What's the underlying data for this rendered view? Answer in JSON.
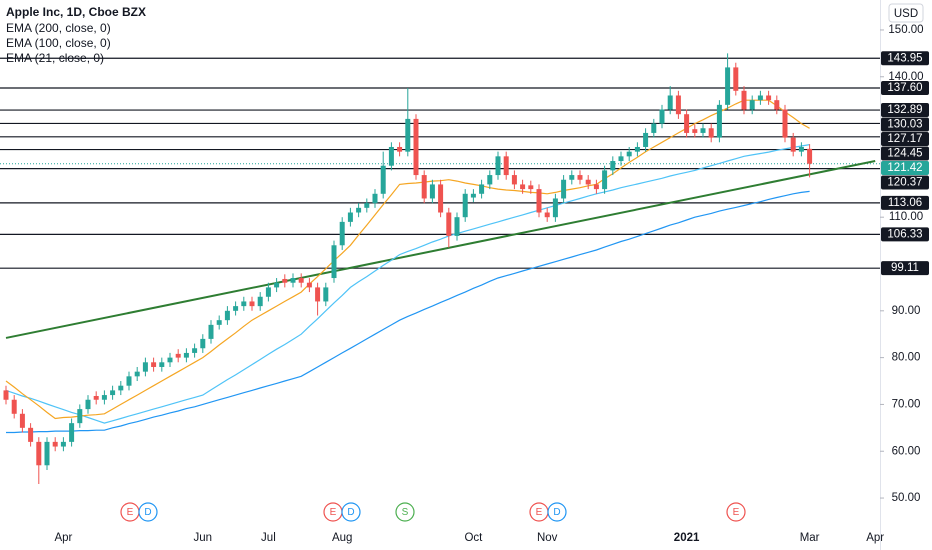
{
  "chart_data": {
    "type": "candlestick",
    "title": "Apple Inc, 1D, Cboe BZX",
    "currency": "USD",
    "categories": [
      null,
      null,
      null,
      null,
      null,
      null,
      null,
      "Apr",
      null,
      null,
      null,
      null,
      null,
      null,
      null,
      null,
      null,
      null,
      null,
      null,
      null,
      null,
      null,
      null,
      "Jun",
      null,
      null,
      null,
      null,
      null,
      null,
      null,
      "Jul",
      null,
      null,
      null,
      null,
      null,
      null,
      null,
      null,
      "Aug",
      null,
      null,
      null,
      null,
      null,
      null,
      null,
      null,
      null,
      null,
      null,
      null,
      null,
      null,
      null,
      "Oct",
      null,
      null,
      null,
      null,
      null,
      null,
      null,
      null,
      "Nov",
      null,
      null,
      null,
      null,
      null,
      null,
      null,
      null,
      null,
      null,
      null,
      null,
      null,
      null,
      null,
      null,
      "2021",
      null,
      null,
      null,
      null,
      null,
      null,
      null,
      null,
      null,
      null,
      null,
      null,
      null,
      null,
      "Mar",
      null,
      null,
      null,
      null,
      null,
      null,
      null,
      "Apr"
    ],
    "open": [
      73,
      71,
      68,
      65,
      62,
      57,
      62,
      61,
      62,
      66,
      69,
      71.8,
      71,
      72,
      73,
      74,
      76,
      77,
      79,
      78,
      79,
      80.8,
      80,
      81,
      82,
      84,
      87,
      88,
      90,
      91,
      92,
      91,
      93,
      95,
      96.8,
      96,
      97,
      96,
      95,
      92,
      97,
      104,
      109,
      111,
      112,
      113,
      115,
      121,
      125,
      124,
      131,
      119,
      114,
      117,
      111,
      106,
      110,
      114.2,
      115,
      117,
      119,
      123,
      119,
      117,
      116.8,
      116,
      111,
      110,
      114,
      118,
      119,
      118,
      117,
      116,
      120,
      122,
      123,
      124,
      125,
      128,
      130,
      133,
      136,
      132,
      128.8,
      128,
      129,
      127,
      134,
      142,
      137,
      133,
      135,
      136,
      135,
      133,
      127,
      124,
      124.6,
      null,
      null,
      null,
      null,
      null,
      null,
      null,
      null
    ],
    "high": [
      74,
      72,
      69,
      66,
      63,
      63,
      63,
      63,
      67,
      70,
      72,
      72.8,
      73,
      74,
      75,
      77,
      78,
      80,
      80,
      80,
      81,
      81.8,
      82,
      83,
      85,
      88,
      89,
      91,
      92,
      93,
      93,
      94,
      96,
      97,
      97.8,
      98,
      98,
      97,
      96,
      96,
      105,
      110,
      112,
      113,
      114,
      116,
      124,
      126,
      126,
      137.6,
      132,
      120,
      118,
      118,
      112,
      111,
      116,
      116,
      118,
      120,
      124,
      124,
      120,
      118,
      117.8,
      117,
      112,
      115,
      119,
      120,
      120,
      119,
      118,
      121,
      123,
      124,
      125,
      126,
      129,
      131,
      134,
      138,
      137,
      133,
      129.8,
      130,
      130,
      135,
      145,
      143,
      138,
      136,
      137,
      137,
      136,
      134,
      128,
      126,
      125.6,
      null,
      null,
      null,
      null,
      null,
      null,
      null,
      null
    ],
    "low": [
      70,
      67,
      64,
      61,
      53,
      56,
      60,
      60,
      61,
      65,
      68,
      70,
      70,
      71,
      72,
      73,
      75,
      76,
      77,
      77,
      78,
      79,
      79,
      80,
      81,
      83,
      86,
      87,
      89,
      90,
      90,
      90,
      92,
      94,
      95,
      95,
      95,
      94,
      89,
      91,
      96,
      103,
      108,
      110,
      111,
      112,
      114,
      120,
      123,
      123,
      118,
      113,
      113,
      110,
      103.5,
      105,
      109,
      113.2,
      114,
      116,
      118,
      118,
      116,
      115,
      115,
      110,
      109,
      109,
      113,
      117,
      117,
      116,
      115,
      115,
      119,
      121,
      122,
      123,
      124,
      127,
      129,
      132,
      131,
      127,
      127,
      127,
      126,
      126,
      133,
      136,
      132,
      132,
      134,
      134,
      132,
      126,
      123,
      123,
      118.5,
      null,
      null,
      null,
      null,
      null,
      null,
      null,
      null
    ],
    "close": [
      71,
      68,
      65,
      62,
      57,
      62,
      61,
      62,
      66,
      69,
      71,
      71,
      72,
      73,
      74,
      76,
      77,
      79,
      78,
      79,
      80,
      80,
      81,
      82,
      84,
      87,
      88,
      90,
      91,
      92,
      91,
      93,
      95,
      96,
      96,
      97,
      96,
      95,
      92,
      95,
      104,
      109,
      111,
      112,
      113,
      115,
      121,
      125,
      124,
      131,
      119,
      114,
      117,
      111,
      106,
      110,
      115,
      115,
      117,
      119,
      123,
      119,
      117,
      116,
      116,
      111,
      110,
      114,
      118,
      119,
      118,
      117,
      116,
      120,
      122,
      123,
      124,
      125,
      128,
      130,
      133,
      136,
      132,
      128,
      128,
      129,
      127,
      134,
      142,
      137,
      133,
      135,
      136,
      135,
      133,
      127,
      124,
      125,
      121.42,
      null,
      null,
      null,
      null,
      null,
      null,
      null,
      null
    ],
    "up_color": "#26a69a",
    "down_color": "#ef5350",
    "series": [
      {
        "name": "EMA (200, close, 0)",
        "color": "#2196f3",
        "values": [
          64,
          64,
          64.1,
          64.1,
          64.2,
          64.2,
          64.3,
          64.3,
          64.3,
          64.4,
          64.4,
          64.5,
          64.5,
          65,
          65.4,
          65.9,
          66.3,
          66.8,
          67.3,
          67.7,
          68.2,
          68.6,
          69.1,
          69.5,
          70,
          70.5,
          71,
          71.5,
          72,
          72.5,
          73,
          73.5,
          74,
          74.5,
          75,
          75.5,
          76,
          77,
          78,
          79,
          80,
          81,
          82,
          83,
          84,
          85,
          86,
          87,
          88,
          88.8,
          89.5,
          90.3,
          91,
          91.8,
          92.5,
          93.3,
          94,
          94.8,
          95.5,
          96.3,
          97,
          97.5,
          98,
          98.5,
          99,
          99.5,
          100,
          100.5,
          101,
          101.5,
          102,
          102.5,
          103,
          103.6,
          104.2,
          104.8,
          105.3,
          105.9,
          106.5,
          107.1,
          107.7,
          108.3,
          108.8,
          109.4,
          110,
          110.4,
          110.8,
          111.3,
          111.7,
          112.1,
          112.5,
          112.9,
          113.3,
          113.8,
          114.2,
          114.6,
          115,
          115.3,
          115.5,
          null,
          null,
          null,
          null,
          null,
          null,
          null,
          null
        ]
      },
      {
        "name": "EMA (100, close, 0)",
        "color": "#4fc3f7",
        "values": [
          73,
          72.4,
          71.8,
          71.3,
          70.7,
          70.1,
          69.5,
          68.9,
          68.3,
          67.8,
          67.2,
          66.6,
          66,
          66.5,
          67,
          67.5,
          68,
          68.5,
          69,
          69.5,
          70,
          70.5,
          71,
          71.5,
          72,
          73.1,
          74.2,
          75.3,
          76.3,
          77.4,
          78.5,
          79.6,
          80.7,
          81.8,
          82.8,
          83.9,
          85,
          86.7,
          88.3,
          90,
          91.7,
          93.3,
          95,
          96.2,
          97.3,
          98.5,
          99.7,
          100.8,
          102,
          102.7,
          103.3,
          104,
          104.7,
          105.3,
          106,
          106.5,
          107,
          107.5,
          108,
          108.5,
          109,
          109.5,
          110,
          110.5,
          111,
          111.5,
          112,
          112.5,
          113,
          113.5,
          114,
          114.5,
          115,
          115.4,
          115.8,
          116.3,
          116.7,
          117.1,
          117.5,
          117.9,
          118.3,
          118.8,
          119.2,
          119.6,
          120,
          120.5,
          121,
          121.5,
          122,
          122.5,
          123,
          123.3,
          123.6,
          123.9,
          124.3,
          124.6,
          124.9,
          125.2,
          125.5,
          null,
          null,
          null,
          null,
          null,
          null,
          null,
          null
        ]
      },
      {
        "name": "EMA (21, close, 0)",
        "color": "#f5a623",
        "values": [
          75,
          73.7,
          72.3,
          71,
          69.7,
          68.3,
          67,
          67.2,
          67.3,
          67.5,
          67.7,
          67.8,
          68,
          69,
          70,
          71,
          72,
          73,
          74,
          75,
          76,
          77,
          78,
          79,
          80,
          81.3,
          82.7,
          84,
          85.3,
          86.7,
          88,
          89,
          90,
          91,
          92,
          93,
          94,
          95.7,
          97.3,
          99,
          100.7,
          102.3,
          104,
          106.2,
          108.3,
          110.5,
          112.7,
          114.8,
          117,
          117.2,
          117.3,
          117.5,
          117.7,
          117.8,
          118,
          117.7,
          117.3,
          117,
          116.7,
          116.3,
          116,
          115.8,
          115.7,
          115.5,
          115.3,
          115.2,
          115,
          115.3,
          115.7,
          116,
          116.3,
          116.7,
          117,
          118.2,
          119.3,
          120.5,
          121.7,
          122.8,
          124,
          125,
          126,
          127,
          128,
          129,
          130,
          130.8,
          131.7,
          132.5,
          133.3,
          134.2,
          135,
          135,
          135,
          135,
          133.8,
          132.5,
          131.3,
          130,
          129,
          null,
          null,
          null,
          null,
          null,
          null,
          null,
          null
        ]
      }
    ],
    "ylim": [
      38.9,
      156.4
    ],
    "yticks": [
      {
        "value": 50,
        "label": "50.00"
      },
      {
        "value": 60,
        "label": "60.00"
      },
      {
        "value": 70,
        "label": "70.00"
      },
      {
        "value": 80,
        "label": "80.00"
      },
      {
        "value": 90,
        "label": "90.00"
      },
      {
        "value": 110,
        "label": "110.00"
      },
      {
        "value": 140,
        "label": "140.00"
      },
      {
        "value": 150,
        "label": "150.00"
      }
    ],
    "levels": [
      143.95,
      137.6,
      132.89,
      130.03,
      127.17,
      124.45,
      120.37,
      113.06,
      106.33,
      99.11
    ],
    "level_labels": [
      "143.95",
      "137.60",
      "132.89",
      "130.03",
      "127.17",
      "124.45",
      "120.37",
      "113.06",
      "106.33",
      "99.11"
    ],
    "level_color": "#131722",
    "last_price": 121.42,
    "last_price_color": "#26a69a",
    "trendline": {
      "start": 84.2,
      "end": 122.0,
      "color": "#2e7d32"
    },
    "events": [
      {
        "label": "E",
        "color": "#ef5350"
      },
      {
        "label": "D",
        "color": "#2196f3"
      },
      {
        "label": "E",
        "color": "#ef5350"
      },
      {
        "label": "D",
        "color": "#2196f3"
      },
      {
        "label": "S",
        "color": "#4caf50"
      },
      {
        "label": "E",
        "color": "#ef5350"
      },
      {
        "label": "D",
        "color": "#2196f3"
      },
      {
        "label": "E",
        "color": "#ef5350"
      }
    ]
  }
}
